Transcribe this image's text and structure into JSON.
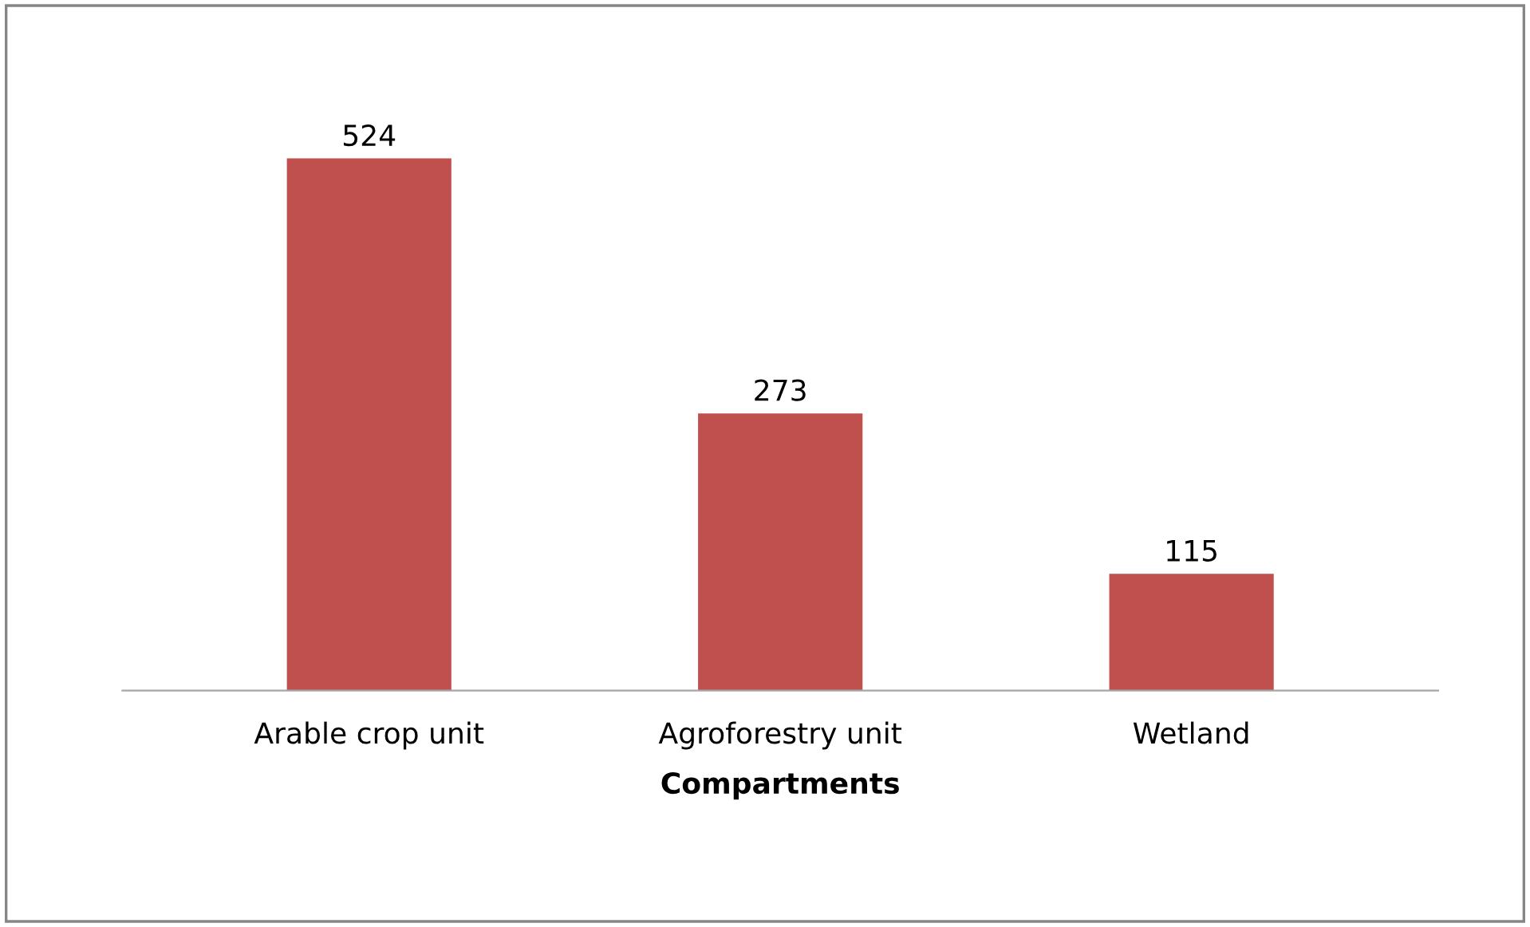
{
  "chart_data": {
    "type": "bar",
    "xlabel": "Compartments",
    "categories": [
      "Arable crop unit",
      "Agroforestry unit",
      "Wetland"
    ],
    "values": [
      524,
      273,
      115
    ],
    "color": "#c0504d",
    "data_labels": true
  }
}
